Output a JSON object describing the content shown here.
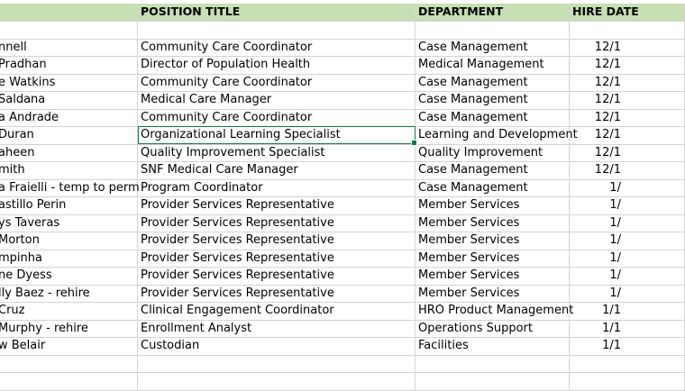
{
  "columns": [
    "",
    "POSITION TITLE",
    "DEPARTMENT",
    "HIRE DATE"
  ],
  "rows": [
    [
      "",
      "",
      "",
      ""
    ],
    [
      "nnell",
      "Community Care Coordinator",
      "Case Management",
      "12/1"
    ],
    [
      "Pradhan",
      "Director of Population Health",
      "Medical Management",
      "12/1"
    ],
    [
      "e Watkins",
      "Community Care Coordinator",
      "Case Management",
      "12/1"
    ],
    [
      "Saldana",
      "Medical Care Manager",
      "Case Management",
      "12/1"
    ],
    [
      "a Andrade",
      "Community Care Coordinator",
      "Case Management",
      "12/1"
    ],
    [
      "Duran",
      "Organizational Learning Specialist",
      "Learning and Development",
      "12/1"
    ],
    [
      "aheen",
      "Quality Improvement Specialist",
      "Quality Improvement",
      "12/1"
    ],
    [
      "mith",
      "SNF Medical Care Manager",
      "Case Management",
      "12/1"
    ],
    [
      "a Fraielli - temp to perm",
      "Program Coordinator",
      "Case Management",
      "1/"
    ],
    [
      "astillo Perin",
      "Provider Services Representative",
      "Member Services",
      "1/"
    ],
    [
      "ys Taveras",
      "Provider Services Representative",
      "Member Services",
      "1/"
    ],
    [
      "Morton",
      "Provider Services Representative",
      "Member Services",
      "1/"
    ],
    [
      "mpinha",
      "Provider Services Representative",
      "Member Services",
      "1/"
    ],
    [
      "ne Dyess",
      "Provider Services Representative",
      "Member Services",
      "1/"
    ],
    [
      "lly Baez - rehire",
      "Provider Services Representative",
      "Member Services",
      "1/"
    ],
    [
      "Cruz",
      "Clinical Engagement Coordinator",
      "HRO Product Management",
      "1/1"
    ],
    [
      "Murphy - rehire",
      "Enrollment Analyst",
      "Operations Support",
      "1/1"
    ],
    [
      "w Belair",
      "Custodian",
      "Facilities",
      "1/1"
    ],
    [
      "",
      "",
      "",
      ""
    ],
    [
      "",
      "",
      "",
      ""
    ]
  ]
}
